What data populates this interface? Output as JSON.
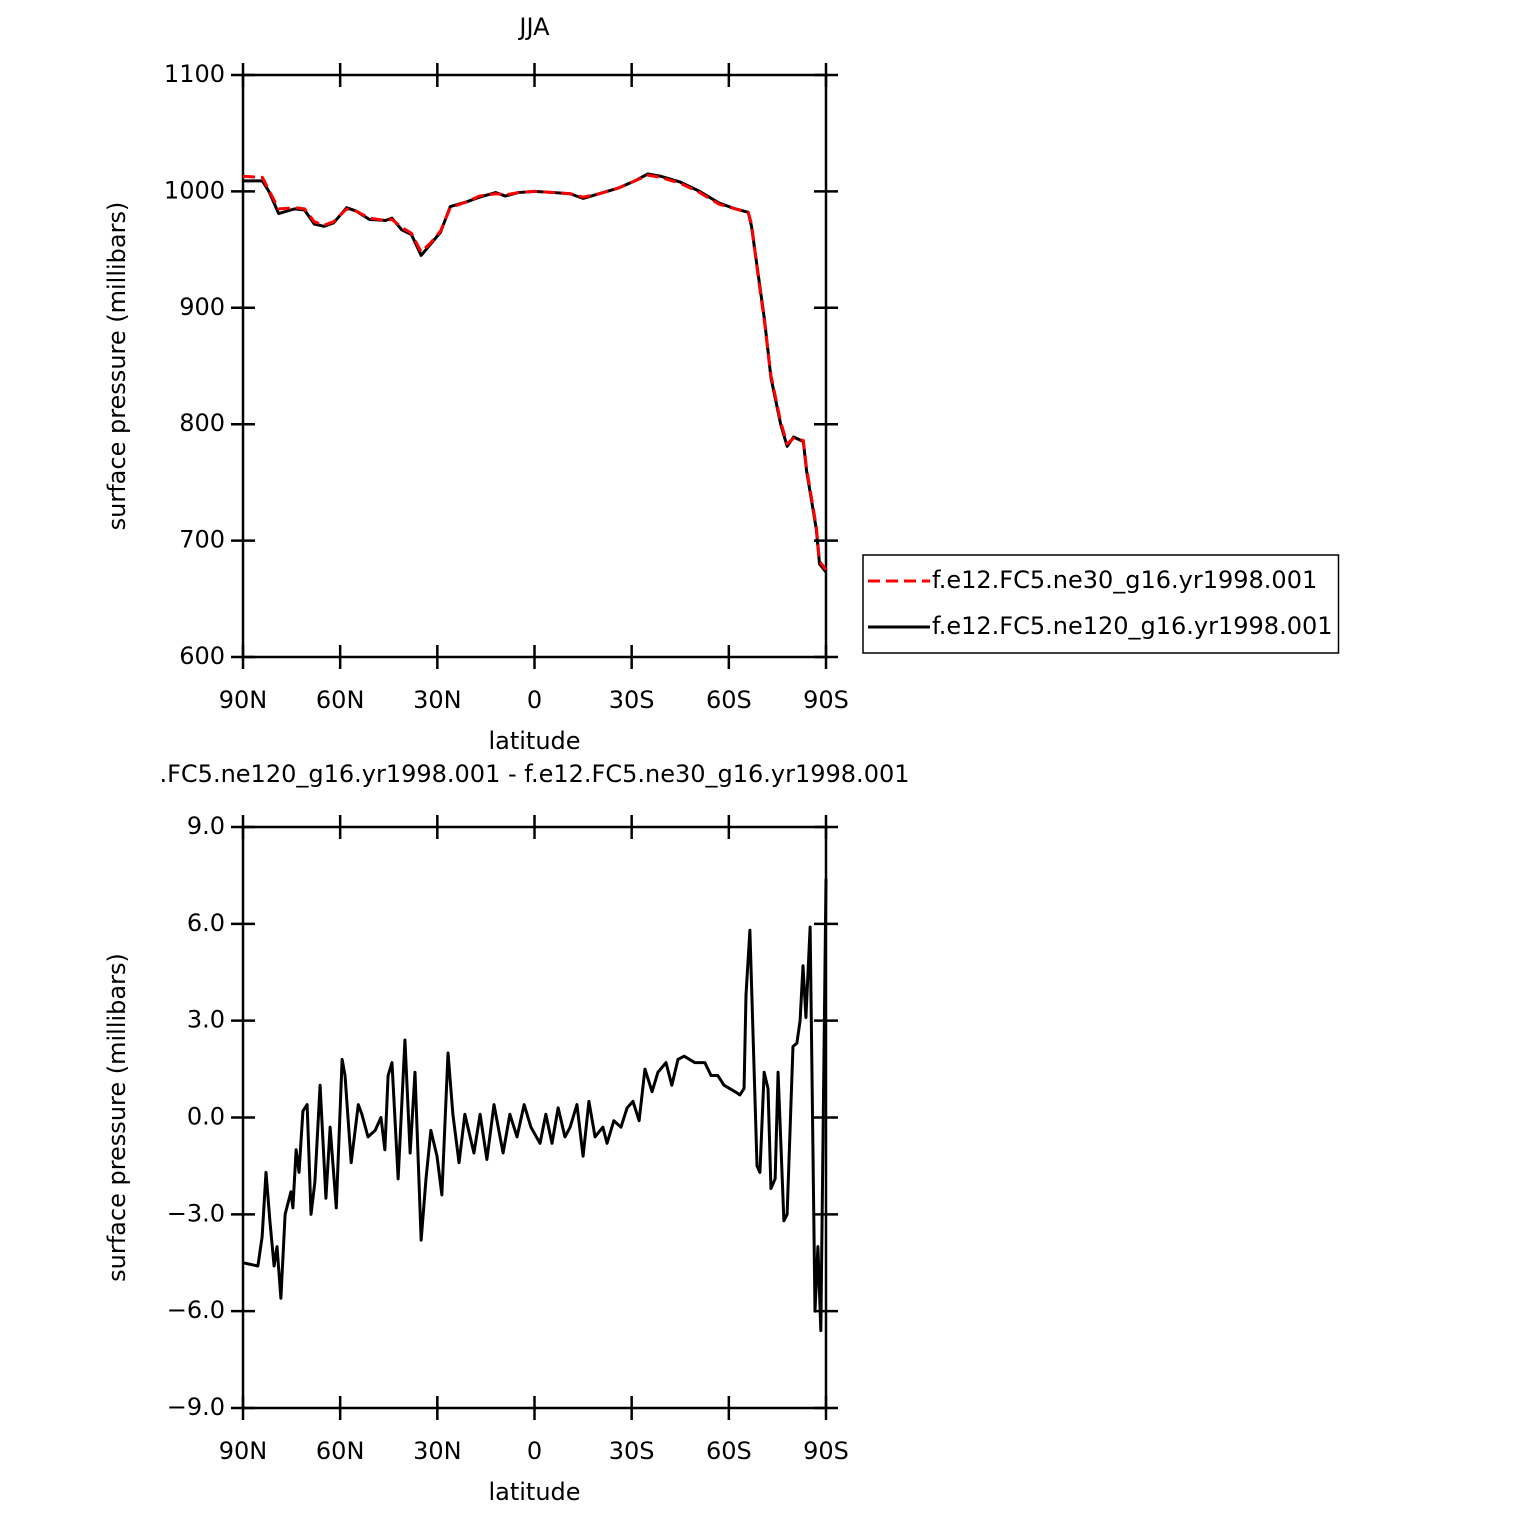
{
  "chart_data": [
    {
      "type": "line",
      "title": "JJA",
      "xlabel": "latitude",
      "ylabel": "surface pressure (millibars)",
      "x": [
        90,
        84,
        82,
        79,
        74,
        71,
        68,
        65,
        62,
        58,
        55,
        51,
        46,
        44,
        41,
        38,
        35,
        32,
        29,
        26,
        21,
        17,
        12,
        9,
        5,
        0,
        -6,
        -11,
        -15,
        -20,
        -26,
        -31,
        -35,
        -39,
        -45,
        -51,
        -57,
        -62,
        -66,
        -67,
        -69,
        -71,
        -73,
        -76,
        -78,
        -80,
        -83,
        -84,
        -87,
        -88,
        -90
      ],
      "series": [
        {
          "name": "f.e12.FC5.ne30_g16.yr1998.001",
          "color": "#ff0000",
          "line_style": "dashed",
          "values": [
            1013,
            1012,
            1001,
            985,
            986,
            985,
            974,
            971,
            974,
            985,
            983,
            977,
            975,
            976,
            969,
            964,
            948,
            956,
            966,
            986,
            991,
            996,
            998,
            997,
            999,
            1000,
            999,
            998,
            995,
            998,
            1003,
            1009,
            1014,
            1012,
            1007,
            999,
            989,
            985,
            982,
            972,
            928,
            888,
            842,
            802,
            783,
            788,
            786,
            762,
            712,
            682,
            675
          ]
        },
        {
          "name": "f.e12.FC5.ne120_g16.yr1998.001",
          "color": "#000000",
          "line_style": "solid",
          "values": [
            1009,
            1009,
            1000,
            981,
            985,
            984,
            972,
            970,
            973,
            986,
            983,
            976,
            975,
            977,
            967,
            963,
            945,
            955,
            965,
            987,
            991,
            995,
            999,
            996,
            999,
            1000,
            999,
            998,
            994,
            998,
            1003,
            1009,
            1015,
            1013,
            1008,
            1000,
            990,
            985,
            982,
            970,
            930,
            890,
            840,
            800,
            781,
            789,
            785,
            760,
            710,
            680,
            673
          ]
        }
      ],
      "xlim": [
        90,
        -90
      ],
      "xticks": [
        {
          "value": 90,
          "label": "90N"
        },
        {
          "value": 60,
          "label": "60N"
        },
        {
          "value": 30,
          "label": "30N"
        },
        0,
        {
          "value": -30,
          "label": "30S"
        },
        {
          "value": -60,
          "label": "60S"
        },
        {
          "value": -90,
          "label": "90S"
        }
      ],
      "ylim": [
        600,
        1100
      ],
      "yticks": [
        600,
        700,
        800,
        900,
        1000,
        1100
      ],
      "grid": false,
      "legend": "right"
    },
    {
      "type": "line",
      "title": ".FC5.ne120_g16.yr1998.001 - f.e12.FC5.ne30_g16.yr1998.001",
      "xlabel": "latitude",
      "ylabel": "surface pressure (millibars)",
      "x": [
        90.0,
        85.4,
        84.1,
        82.9,
        81.7,
        80.4,
        79.5,
        78.3,
        77.0,
        75.2,
        74.6,
        73.6,
        72.7,
        71.5,
        70.2,
        69.0,
        67.8,
        66.2,
        64.4,
        63.1,
        61.2,
        59.4,
        58.5,
        56.6,
        54.4,
        53.3,
        51.4,
        49.2,
        47.4,
        46.2,
        45.2,
        44.0,
        42.1,
        40.0,
        38.4,
        36.9,
        35.0,
        33.5,
        32.0,
        30.1,
        28.6,
        26.7,
        25.2,
        23.3,
        21.5,
        18.7,
        16.8,
        14.7,
        12.5,
        9.7,
        7.6,
        5.4,
        3.2,
        1.1,
        -1.7,
        -3.5,
        -5.4,
        -7.3,
        -9.4,
        -11.0,
        -13.1,
        -15.0,
        -16.8,
        -18.7,
        -21.1,
        -22.4,
        -24.5,
        -26.7,
        -28.6,
        -30.4,
        -32.3,
        -34.1,
        -36.3,
        -38.1,
        -40.6,
        -42.4,
        -44.3,
        -46.2,
        -49.5,
        -52.6,
        -54.5,
        -56.6,
        -58.5,
        -61.9,
        -63.4,
        -64.7,
        -65.3,
        -66.5,
        -68.7,
        -69.6,
        -70.9,
        -72.1,
        -73.0,
        -74.3,
        -75.2,
        -77.0,
        -78.0,
        -79.8,
        -81.0,
        -82.0,
        -82.9,
        -83.8,
        -85.1,
        -86.6,
        -87.5,
        -88.4,
        -90.0
      ],
      "series": [
        {
          "color": "#000000",
          "line_style": "solid",
          "values": [
            -4.5,
            -4.6,
            -3.7,
            -1.7,
            -3.2,
            -4.6,
            -4.0,
            -5.6,
            -3.0,
            -2.3,
            -2.8,
            -1.0,
            -1.7,
            0.2,
            0.4,
            -3.0,
            -2.0,
            1.0,
            -2.5,
            -0.3,
            -2.8,
            1.8,
            1.3,
            -1.4,
            0.4,
            0.1,
            -0.6,
            -0.4,
            0.0,
            -1.0,
            1.3,
            1.7,
            -1.9,
            2.4,
            -1.1,
            1.4,
            -3.8,
            -1.9,
            -0.4,
            -1.2,
            -2.4,
            2.0,
            0.1,
            -1.4,
            0.1,
            -1.1,
            0.1,
            -1.3,
            0.4,
            -1.1,
            0.1,
            -0.6,
            0.4,
            -0.3,
            -0.8,
            0.1,
            -0.8,
            0.3,
            -0.6,
            -0.3,
            0.4,
            -1.2,
            0.5,
            -0.6,
            -0.3,
            -0.8,
            -0.1,
            -0.3,
            0.3,
            0.5,
            -0.1,
            1.5,
            0.8,
            1.4,
            1.7,
            1.0,
            1.8,
            1.9,
            1.7,
            1.7,
            1.3,
            1.3,
            1.0,
            0.8,
            0.7,
            0.9,
            3.8,
            5.8,
            -1.5,
            -1.7,
            1.4,
            0.9,
            -2.2,
            -1.9,
            1.4,
            -3.2,
            -3.0,
            2.2,
            2.3,
            3.0,
            4.7,
            3.1,
            5.9,
            -6.0,
            -4.0,
            -6.6,
            7.4
          ]
        }
      ],
      "xlim": [
        90,
        -90
      ],
      "xticks": [
        {
          "value": 90,
          "label": "90N"
        },
        {
          "value": 60,
          "label": "60N"
        },
        {
          "value": 30,
          "label": "30N"
        },
        0,
        {
          "value": -30,
          "label": "30S"
        },
        {
          "value": -60,
          "label": "60S"
        },
        {
          "value": -90,
          "label": "90S"
        }
      ],
      "ylim": [
        -9,
        9
      ],
      "yticks": [
        {
          "value": -9,
          "label": "−9.0"
        },
        {
          "value": -6,
          "label": "−6.0"
        },
        {
          "value": -3,
          "label": "−3.0"
        },
        {
          "value": 0,
          "label": "0.0"
        },
        {
          "value": 3,
          "label": "3.0"
        },
        {
          "value": 6,
          "label": "6.0"
        },
        {
          "value": 9,
          "label": "9.0"
        }
      ],
      "grid": false
    }
  ]
}
